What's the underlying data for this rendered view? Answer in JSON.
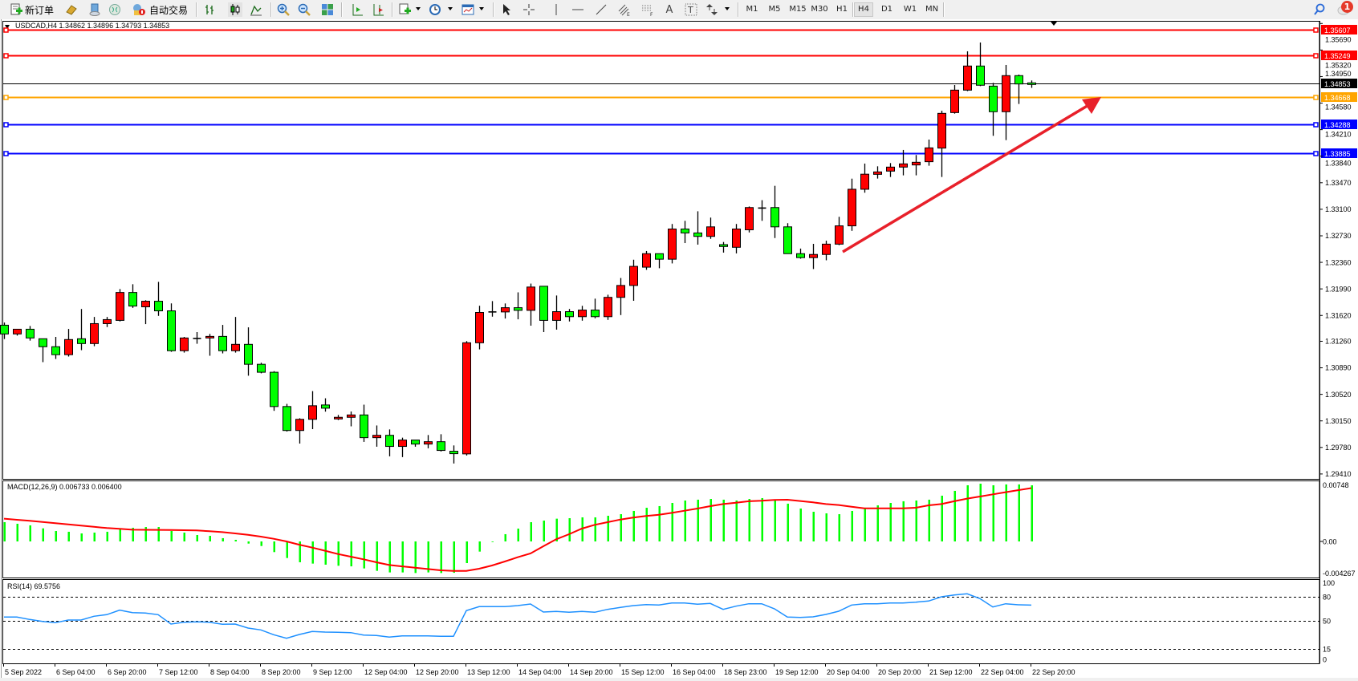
{
  "toolbar": {
    "new_order_label": "新订单",
    "auto_trading_label": "自动交易",
    "timeframes": [
      "M1",
      "M5",
      "M15",
      "M30",
      "H1",
      "H4",
      "D1",
      "W1",
      "MN"
    ],
    "active_timeframe": "H4",
    "notification_count": "1",
    "icons": [
      "new-order-icon",
      "gold-bars-icon",
      "history-center-icon",
      "signals-icon",
      "auto-trading-icon",
      "bar-chart-icon",
      "candlestick-icon",
      "line-chart-icon",
      "zoom-in-icon",
      "zoom-out-icon",
      "tile-windows-icon",
      "auto-scroll-icon",
      "chart-shift-icon",
      "indicators-icon",
      "periods-clock-icon",
      "templates-icon",
      "cursor-icon",
      "crosshair-icon",
      "vertical-line-icon",
      "horizontal-line-icon",
      "trendline-icon",
      "fibonacci-channel-icon",
      "fibonacci-fan-icon",
      "text-icon",
      "text-label-icon",
      "arrows-icon",
      "search-icon",
      "notification-icon"
    ]
  },
  "chart": {
    "header": "USDCAD,H4  1.34862 1.34896 1.34793 1.34853",
    "price_ticks": [
      "1.35690",
      "1.35320",
      "1.34950",
      "1.34580",
      "1.34210",
      "1.33840",
      "1.33470",
      "1.33100",
      "1.32730",
      "1.32360",
      "1.31990",
      "1.31620",
      "1.31260",
      "1.30890",
      "1.30520",
      "1.30150",
      "1.29780",
      "1.29410"
    ],
    "levels": [
      {
        "price": "1.35607",
        "color": "#ff0000"
      },
      {
        "price": "1.35249",
        "color": "#ff0000"
      },
      {
        "price": "1.34668",
        "color": "#ffa500"
      },
      {
        "price": "1.34288",
        "color": "#0000ff"
      },
      {
        "price": "1.33885",
        "color": "#0000ff"
      }
    ],
    "bid": {
      "price": "1.34853",
      "color": "#000000"
    },
    "bull_color": "#ff0000",
    "bear_color": "#00ff00",
    "arrow_color": "#e8202a",
    "x_labels": [
      "5 Sep 2022",
      "6 Sep 04:00",
      "6 Sep 20:00",
      "7 Sep 12:00",
      "8 Sep 04:00",
      "8 Sep 20:00",
      "9 Sep 12:00",
      "12 Sep 04:00",
      "12 Sep 20:00",
      "13 Sep 12:00",
      "14 Sep 04:00",
      "14 Sep 20:00",
      "15 Sep 12:00",
      "16 Sep 04:00",
      "18 Sep 23:00",
      "19 Sep 12:00",
      "20 Sep 04:00",
      "20 Sep 20:00",
      "21 Sep 12:00",
      "22 Sep 04:00",
      "22 Sep 20:00"
    ]
  },
  "macd": {
    "label": "MACD(12,26,9) 0.006733 0.006400",
    "ticks": [
      "0.00748",
      "0.00",
      "-0.004267"
    ],
    "hist_color": "#00ff00",
    "signal_color": "#ff0000"
  },
  "rsi": {
    "label": "RSI(14) 69.5756",
    "ticks": [
      "100",
      "80",
      "50",
      "15",
      "0"
    ],
    "levels": [
      80,
      50,
      15
    ],
    "color": "#1e90ff"
  },
  "chart_data": [
    {
      "type": "candlestick",
      "symbol": "USDCAD",
      "timeframe": "H4",
      "ylim": [
        1.2941,
        1.3569
      ],
      "ohlc": [
        [
          1.31484,
          1.31521,
          1.31291,
          1.31362
        ],
        [
          1.31362,
          1.31428,
          1.31339,
          1.31428
        ],
        [
          1.31428,
          1.31473,
          1.31269,
          1.31306
        ],
        [
          1.31295,
          1.31295,
          1.30969,
          1.31184
        ],
        [
          1.31184,
          1.31321,
          1.31013,
          1.31073
        ],
        [
          1.31073,
          1.31432,
          1.31047,
          1.31284
        ],
        [
          1.31295,
          1.3171,
          1.31136,
          1.31228
        ],
        [
          1.31228,
          1.31599,
          1.31191,
          1.31506
        ],
        [
          1.31506,
          1.31599,
          1.31458,
          1.31562
        ],
        [
          1.31551,
          1.31988,
          1.31536,
          1.3194
        ],
        [
          1.3194,
          1.32055,
          1.31725,
          1.31751
        ],
        [
          1.3174,
          1.31832,
          1.31499,
          1.31818
        ],
        [
          1.31818,
          1.32088,
          1.31614,
          1.31684
        ],
        [
          1.31684,
          1.31788,
          1.31113,
          1.31128
        ],
        [
          1.31128,
          1.31321,
          1.31102,
          1.31306
        ],
        [
          1.31299,
          1.31388,
          1.31225,
          1.31299
        ],
        [
          1.31306,
          1.31362,
          1.31058,
          1.31328
        ],
        [
          1.31328,
          1.31488,
          1.31091,
          1.31128
        ],
        [
          1.31128,
          1.31599,
          1.31102,
          1.31217
        ],
        [
          1.31217,
          1.31454,
          1.3078,
          1.30939
        ],
        [
          1.30939,
          1.30961,
          1.30813,
          1.30828
        ],
        [
          1.30828,
          1.30843,
          1.3029,
          1.3035
        ],
        [
          1.3035,
          1.30387,
          1.30001,
          1.30016
        ],
        [
          1.30016,
          1.30187,
          1.29834,
          1.30172
        ],
        [
          1.30172,
          1.30565,
          1.30035,
          1.30361
        ],
        [
          1.30372,
          1.30465,
          1.30279,
          1.30327
        ],
        [
          1.30177,
          1.30233,
          1.30162,
          1.302
        ],
        [
          1.302,
          1.30281,
          1.30074,
          1.30233
        ],
        [
          1.30233,
          1.30376,
          1.29857,
          1.29916
        ],
        [
          1.29916,
          1.30086,
          1.2979,
          1.29949
        ],
        [
          1.29949,
          1.30031,
          1.29656,
          1.29794
        ],
        [
          1.29794,
          1.29916,
          1.29645,
          1.29883
        ],
        [
          1.29883,
          1.29883,
          1.2979,
          1.29827
        ],
        [
          1.29827,
          1.29953,
          1.29768,
          1.2986
        ],
        [
          1.2986,
          1.29964,
          1.29723,
          1.29738
        ],
        [
          1.29727,
          1.29808,
          1.29556,
          1.29693
        ],
        [
          1.2969,
          1.31262,
          1.29668,
          1.31239
        ],
        [
          1.31239,
          1.31755,
          1.31147,
          1.31662
        ],
        [
          1.31669,
          1.3182,
          1.31603,
          1.31669
        ],
        [
          1.31669,
          1.31787,
          1.31577,
          1.31728
        ],
        [
          1.31728,
          1.31942,
          1.31566,
          1.31691
        ],
        [
          1.31691,
          1.32064,
          1.31477,
          1.32016
        ],
        [
          1.32027,
          1.32027,
          1.31388,
          1.31551
        ],
        [
          1.31551,
          1.31898,
          1.31422,
          1.31673
        ],
        [
          1.31673,
          1.3171,
          1.31536,
          1.31603
        ],
        [
          1.31603,
          1.31754,
          1.31547,
          1.31695
        ],
        [
          1.31695,
          1.31854,
          1.3158,
          1.31603
        ],
        [
          1.31603,
          1.31909,
          1.31558,
          1.31872
        ],
        [
          1.31872,
          1.32142,
          1.31625,
          1.32038
        ],
        [
          1.32038,
          1.32397,
          1.31824,
          1.32304
        ],
        [
          1.32293,
          1.32518,
          1.32256,
          1.32481
        ],
        [
          1.32481,
          1.32481,
          1.32278,
          1.32404
        ],
        [
          1.32404,
          1.32895,
          1.32345,
          1.32825
        ],
        [
          1.32825,
          1.32939,
          1.32629,
          1.3277
        ],
        [
          1.3277,
          1.33072,
          1.32607,
          1.32722
        ],
        [
          1.32722,
          1.32984,
          1.32688,
          1.32855
        ],
        [
          1.32607,
          1.32644,
          1.32496,
          1.32581
        ],
        [
          1.3257,
          1.32895,
          1.32485,
          1.32825
        ],
        [
          1.32814,
          1.33139,
          1.32777,
          1.33124
        ],
        [
          1.33117,
          1.33227,
          1.32939,
          1.33117
        ],
        [
          1.33124,
          1.33427,
          1.32699,
          1.32855
        ],
        [
          1.32855,
          1.32906,
          1.32481,
          1.32481
        ],
        [
          1.32481,
          1.32552,
          1.32411,
          1.32426
        ],
        [
          1.32426,
          1.32618,
          1.32267,
          1.3247
        ],
        [
          1.3247,
          1.32662,
          1.32389,
          1.32614
        ],
        [
          1.32614,
          1.32995,
          1.326,
          1.32869
        ],
        [
          1.32869,
          1.33527,
          1.32799,
          1.33379
        ],
        [
          1.33379,
          1.33737,
          1.33331,
          1.33589
        ],
        [
          1.33587,
          1.33699,
          1.33528,
          1.33621
        ],
        [
          1.33632,
          1.33744,
          1.3355,
          1.33688
        ],
        [
          1.33688,
          1.33927,
          1.33573,
          1.33733
        ],
        [
          1.33718,
          1.33856,
          1.33573,
          1.33755
        ],
        [
          1.33763,
          1.34072,
          1.33707,
          1.33956
        ],
        [
          1.33953,
          1.34474,
          1.3355,
          1.34437
        ],
        [
          1.34448,
          1.34832,
          1.34433,
          1.34761
        ],
        [
          1.34761,
          1.35302,
          1.34747,
          1.35097
        ],
        [
          1.35097,
          1.35425,
          1.34817,
          1.34829
        ],
        [
          1.34817,
          1.34862,
          1.34124,
          1.3446
        ],
        [
          1.3446,
          1.35112,
          1.34064,
          1.34963
        ],
        [
          1.34963,
          1.34978,
          1.34568,
          1.34847
        ],
        [
          1.34862,
          1.34896,
          1.34793,
          1.34853
        ]
      ]
    },
    {
      "type": "bar",
      "indicator": "MACD(12,26,9)",
      "ylim": [
        -0.004267,
        0.00748
      ],
      "macd": [
        0.00231,
        0.00212,
        0.00193,
        0.00157,
        0.00125,
        0.00116,
        0.00096,
        0.00106,
        0.00116,
        0.00154,
        0.00164,
        0.00173,
        0.00173,
        0.00125,
        0.00106,
        0.00077,
        0.00067,
        0.00039,
        0.00019,
        -0.00026,
        -0.00055,
        -0.00128,
        -0.00199,
        -0.0025,
        -0.00266,
        -0.00279,
        -0.00292,
        -0.00299,
        -0.00324,
        -0.00353,
        -0.00372,
        -0.00372,
        -0.00379,
        -0.00372,
        -0.00379,
        -0.00376,
        -0.0026,
        -0.00122,
        -3e-05,
        0.00087,
        0.00154,
        0.00231,
        0.0025,
        0.00273,
        0.00279,
        0.00289,
        0.00289,
        0.00308,
        0.00327,
        0.00366,
        0.00404,
        0.00424,
        0.00462,
        0.00491,
        0.00501,
        0.0051,
        0.00501,
        0.00491,
        0.0051,
        0.0052,
        0.00501,
        0.00453,
        0.00395,
        0.00356,
        0.00337,
        0.00327,
        0.00366,
        0.00395,
        0.00433,
        0.00462,
        0.00482,
        0.00491,
        0.00501,
        0.00549,
        0.00607,
        0.00674,
        0.00693,
        0.00674,
        0.00684,
        0.00684,
        0.006733
      ],
      "signal": [
        0.00273,
        0.0026,
        0.00247,
        0.00233,
        0.00219,
        0.00205,
        0.0019,
        0.00175,
        0.00161,
        0.00151,
        0.00141,
        0.0014,
        0.00139,
        0.00138,
        0.00135,
        0.00132,
        0.00122,
        0.00112,
        0.00096,
        0.0008,
        0.00058,
        0.00032,
        0.0,
        -0.00039,
        -0.00074,
        -0.00112,
        -0.00151,
        -0.00183,
        -0.00215,
        -0.0025,
        -0.00283,
        -0.00299,
        -0.00315,
        -0.00331,
        -0.00347,
        -0.00353,
        -0.00353,
        -0.00327,
        -0.00289,
        -0.00241,
        -0.0019,
        -0.00144,
        -0.00058,
        0.00026,
        0.00087,
        0.00154,
        0.00199,
        0.00231,
        0.00263,
        0.00286,
        0.00305,
        0.00321,
        0.00343,
        0.00369,
        0.00395,
        0.00424,
        0.00449,
        0.00465,
        0.00482,
        0.00488,
        0.00498,
        0.00501,
        0.00485,
        0.00469,
        0.00449,
        0.00437,
        0.00417,
        0.00398,
        0.00398,
        0.00398,
        0.00398,
        0.00404,
        0.00433,
        0.00449,
        0.00482,
        0.00514,
        0.00539,
        0.00565,
        0.00591,
        0.00616,
        0.0064
      ]
    },
    {
      "type": "line",
      "indicator": "RSI(14)",
      "ylim": [
        0,
        100
      ],
      "values": [
        54.7,
        54.7,
        51.7,
        49.3,
        47.7,
        51,
        51,
        55.7,
        57.7,
        63.3,
        60.3,
        59.7,
        57.7,
        46,
        48.3,
        48.7,
        48.3,
        45.7,
        46,
        41,
        38.7,
        32.7,
        28.3,
        33,
        36.7,
        36,
        35.7,
        35.3,
        32.3,
        31.7,
        29.7,
        31.3,
        31.3,
        31.3,
        30.7,
        30.7,
        62.7,
        67.7,
        67.7,
        67.7,
        69,
        71,
        61,
        61.7,
        60.7,
        61.7,
        60.7,
        64.3,
        66.7,
        69,
        70.3,
        69.7,
        72.3,
        72.3,
        70.7,
        71.7,
        64.3,
        68.3,
        71.3,
        71.3,
        65,
        54.7,
        54.3,
        55,
        58,
        62,
        69.7,
        71.3,
        71.3,
        72.3,
        72.3,
        73.3,
        74.7,
        80,
        82.3,
        83.7,
        77.7,
        67.3,
        71.3,
        70,
        69.58
      ]
    }
  ]
}
